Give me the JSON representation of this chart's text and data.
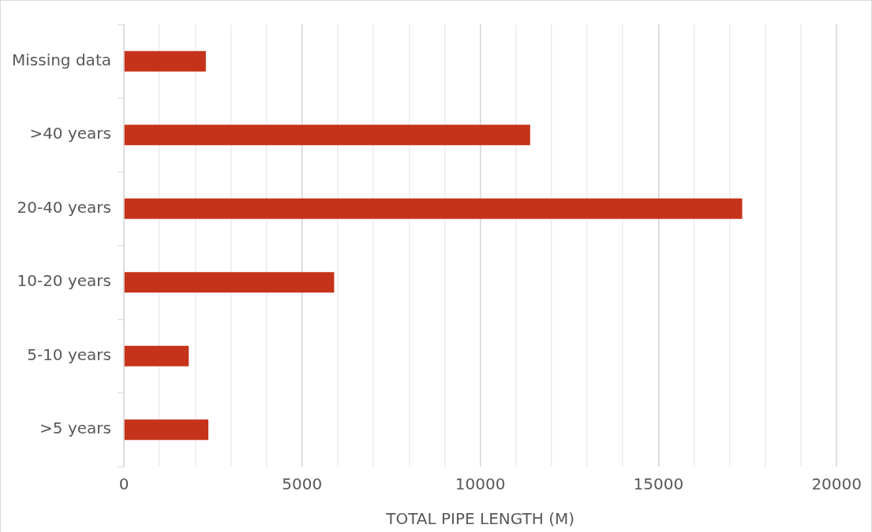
{
  "chart_data": {
    "type": "bar",
    "orientation": "horizontal",
    "xlabel": "TOTAL PIPE LENGTH (M)",
    "categories": [
      "Missing data",
      ">40 years",
      "20-40 years",
      "10-20 years",
      "5-10 years",
      ">5 years"
    ],
    "values": [
      2300,
      11400,
      17350,
      5900,
      1820,
      2370
    ],
    "color": "#c5341a",
    "xlim": [
      0,
      20000
    ],
    "xticks": [
      0,
      {
        "value": 1000,
        "label": null
      },
      {
        "value": 2000,
        "label": null
      },
      {
        "value": 3000,
        "label": null
      },
      {
        "value": 4000,
        "label": null
      },
      5000,
      {
        "value": 6000,
        "label": null
      },
      {
        "value": 7000,
        "label": null
      },
      {
        "value": 8000,
        "label": null
      },
      {
        "value": 9000,
        "label": null
      },
      10000,
      {
        "value": 11000,
        "label": null
      },
      {
        "value": 12000,
        "label": null
      },
      {
        "value": 13000,
        "label": null
      },
      {
        "value": 14000,
        "label": null
      },
      15000,
      {
        "value": 16000,
        "label": null
      },
      {
        "value": 17000,
        "label": null
      },
      {
        "value": 18000,
        "label": null
      },
      {
        "value": 19000,
        "label": null
      },
      20000
    ],
    "grid": "x",
    "legend": false
  }
}
